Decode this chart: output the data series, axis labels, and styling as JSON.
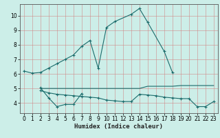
{
  "xlabel": "Humidex (Indice chaleur)",
  "bg_color": "#cceee8",
  "grid_color": "#d08080",
  "line_color": "#1a6b6b",
  "xlim": [
    -0.5,
    23.5
  ],
  "ylim": [
    3.3,
    10.8
  ],
  "xticks": [
    0,
    1,
    2,
    3,
    4,
    5,
    6,
    7,
    8,
    9,
    10,
    11,
    12,
    13,
    14,
    15,
    16,
    17,
    18,
    19,
    20,
    21,
    22,
    23
  ],
  "yticks": [
    4,
    5,
    6,
    7,
    8,
    9,
    10
  ],
  "line1_x": [
    0,
    1,
    2,
    3,
    4,
    5,
    6,
    7,
    8,
    9,
    10,
    11,
    13,
    14,
    15,
    17,
    18
  ],
  "line1_y": [
    6.2,
    6.05,
    6.1,
    6.4,
    6.7,
    7.0,
    7.3,
    7.9,
    8.3,
    6.4,
    9.2,
    9.6,
    10.1,
    10.5,
    9.55,
    7.55,
    6.1
  ],
  "line2_x": [
    2,
    3,
    4,
    5,
    6,
    7
  ],
  "line2_y": [
    5.05,
    4.35,
    3.75,
    3.9,
    3.9,
    4.65
  ],
  "line3_x": [
    2,
    3,
    4,
    5,
    6,
    7,
    8,
    9,
    10,
    11,
    12,
    13,
    14,
    15,
    16,
    17,
    18,
    19,
    20,
    21,
    22,
    23
  ],
  "line3_y": [
    5.0,
    5.0,
    5.0,
    5.0,
    5.0,
    5.0,
    5.0,
    5.0,
    5.0,
    5.0,
    5.0,
    5.0,
    5.0,
    5.15,
    5.15,
    5.15,
    5.15,
    5.2,
    5.2,
    5.2,
    5.2,
    5.2
  ],
  "line4_x": [
    2,
    3,
    4,
    5,
    6,
    7,
    8,
    9,
    10,
    11,
    12,
    13,
    14,
    15,
    16,
    17,
    18,
    19,
    20,
    21,
    22,
    23
  ],
  "line4_y": [
    4.85,
    4.7,
    4.6,
    4.55,
    4.5,
    4.45,
    4.4,
    4.35,
    4.2,
    4.15,
    4.1,
    4.1,
    4.6,
    4.55,
    4.5,
    4.4,
    4.35,
    4.3,
    4.3,
    3.75,
    3.75,
    4.1
  ]
}
